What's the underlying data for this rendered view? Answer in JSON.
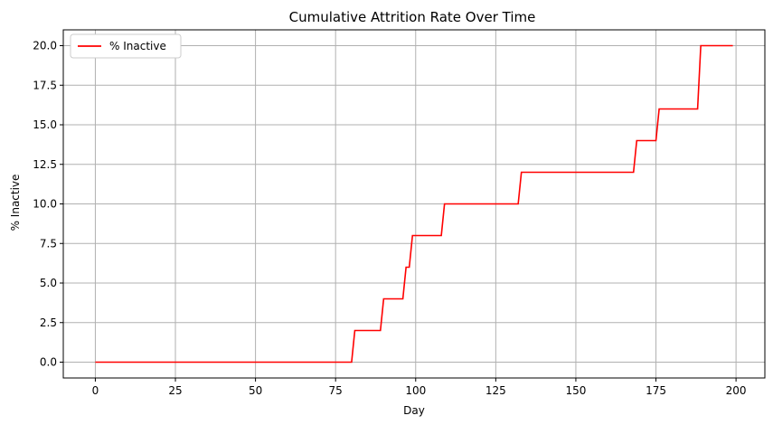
{
  "chart_data": {
    "type": "line",
    "title": "Cumulative Attrition Rate Over Time",
    "xlabel": "Day",
    "ylabel": "% Inactive",
    "xlim": [
      -10,
      209
    ],
    "ylim": [
      -1,
      21
    ],
    "grid": true,
    "legend": {
      "position": "top-left",
      "entries": [
        "% Inactive"
      ]
    },
    "x_ticks": [
      0,
      25,
      50,
      75,
      100,
      125,
      150,
      175,
      200
    ],
    "x_tick_labels": [
      "0",
      "25",
      "50",
      "75",
      "100",
      "125",
      "150",
      "175",
      "200"
    ],
    "y_ticks": [
      0,
      2.5,
      5,
      7.5,
      10,
      12.5,
      15,
      17.5,
      20
    ],
    "y_tick_labels": [
      "0.0",
      "2.5",
      "5.0",
      "7.5",
      "10.0",
      "12.5",
      "15.0",
      "17.5",
      "20.0"
    ],
    "series": [
      {
        "name": "% Inactive",
        "color": "#ff0000",
        "x": [
          0,
          80,
          81,
          89,
          90,
          96,
          97,
          98,
          99,
          108,
          109,
          132,
          133,
          168,
          169,
          175,
          176,
          188,
          189,
          199
        ],
        "y": [
          0,
          0,
          2,
          2,
          4,
          4,
          6,
          6,
          8,
          8,
          10,
          10,
          12,
          12,
          14,
          14,
          16,
          16,
          20,
          20
        ]
      }
    ]
  },
  "colors": {
    "grid": "#b0b0b0",
    "axis": "#000000",
    "background": "#ffffff",
    "line": "#ff0000",
    "legend_border": "#cccccc"
  }
}
